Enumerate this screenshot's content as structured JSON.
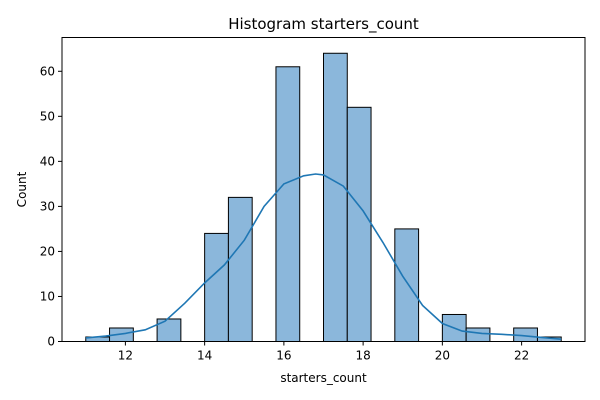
{
  "chart_data": {
    "type": "bar",
    "title": "Histogram starters_count",
    "xlabel": "starters_count",
    "ylabel": "Count",
    "xlim": [
      10.4,
      23.6
    ],
    "ylim": [
      0,
      67.5
    ],
    "x_ticks": [
      12,
      14,
      16,
      18,
      20,
      22
    ],
    "y_ticks": [
      0,
      10,
      20,
      30,
      40,
      50,
      60
    ],
    "grid": false,
    "bar_color": "#8bb7db",
    "kde_color": "#1f77b4",
    "bins": [
      {
        "x0": 11.0,
        "x1": 11.6,
        "count": 1
      },
      {
        "x0": 11.6,
        "x1": 12.2,
        "count": 3
      },
      {
        "x0": 12.2,
        "x1": 12.8,
        "count": 0
      },
      {
        "x0": 12.8,
        "x1": 13.4,
        "count": 5
      },
      {
        "x0": 13.4,
        "x1": 14.0,
        "count": 0
      },
      {
        "x0": 14.0,
        "x1": 14.6,
        "count": 24
      },
      {
        "x0": 14.6,
        "x1": 15.2,
        "count": 32
      },
      {
        "x0": 15.2,
        "x1": 15.8,
        "count": 0
      },
      {
        "x0": 15.8,
        "x1": 16.4,
        "count": 61
      },
      {
        "x0": 16.4,
        "x1": 17.0,
        "count": 0
      },
      {
        "x0": 17.0,
        "x1": 17.6,
        "count": 64
      },
      {
        "x0": 17.6,
        "x1": 18.2,
        "count": 52
      },
      {
        "x0": 18.2,
        "x1": 18.8,
        "count": 0
      },
      {
        "x0": 18.8,
        "x1": 19.4,
        "count": 25
      },
      {
        "x0": 19.4,
        "x1": 20.0,
        "count": 0
      },
      {
        "x0": 20.0,
        "x1": 20.6,
        "count": 6
      },
      {
        "x0": 20.6,
        "x1": 21.2,
        "count": 3
      },
      {
        "x0": 21.2,
        "x1": 21.8,
        "count": 0
      },
      {
        "x0": 21.8,
        "x1": 22.4,
        "count": 3
      },
      {
        "x0": 22.4,
        "x1": 23.0,
        "count": 1
      }
    ],
    "kde": {
      "x": [
        11.0,
        11.5,
        12.0,
        12.5,
        13.0,
        13.5,
        14.0,
        14.5,
        15.0,
        15.5,
        16.0,
        16.5,
        16.8,
        17.0,
        17.5,
        18.0,
        18.5,
        19.0,
        19.5,
        20.0,
        20.5,
        21.0,
        21.5,
        22.0,
        22.5,
        23.0
      ],
      "y": [
        0.8,
        1.2,
        1.8,
        2.6,
        4.5,
        8.5,
        13.0,
        17.0,
        22.5,
        30.0,
        35.0,
        36.8,
        37.2,
        37.0,
        34.5,
        29.0,
        22.0,
        14.5,
        8.0,
        4.0,
        2.3,
        1.8,
        1.6,
        1.3,
        0.9,
        0.5
      ]
    }
  }
}
